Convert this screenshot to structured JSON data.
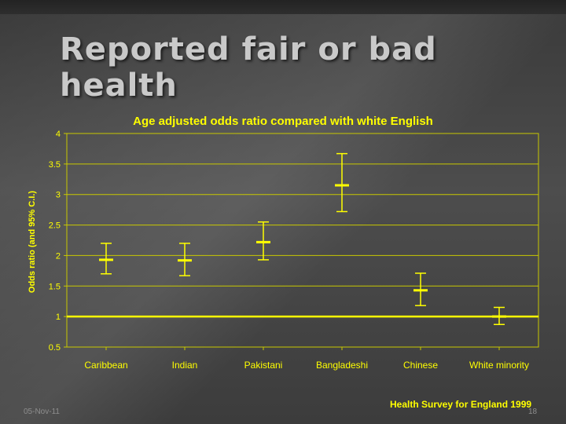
{
  "slide": {
    "title": "Reported fair or bad health",
    "source": "Health Survey for England 1999",
    "date": "05-Nov-11",
    "page": "18"
  },
  "colors": {
    "accent": "#ffff00",
    "grid": "#c8c800",
    "background": "#454545"
  },
  "chart_data": {
    "type": "errorbar",
    "title": "Age adjusted odds ratio compared with white English",
    "xlabel": "",
    "ylabel": "Odds ratio (and 95% C.I.)",
    "ylim": [
      0.5,
      4
    ],
    "yticks": [
      "0.5",
      "1",
      "1.5",
      "2",
      "2.5",
      "3",
      "3.5",
      "4"
    ],
    "reference_line": 1,
    "grid": true,
    "categories": [
      "Caribbean",
      "Indian",
      "Pakistani",
      "Bangladeshi",
      "Chinese",
      "White minority"
    ],
    "values": [
      1.93,
      1.92,
      2.22,
      3.15,
      1.43,
      1.0
    ],
    "lower": [
      1.7,
      1.67,
      1.93,
      2.72,
      1.18,
      0.87
    ],
    "upper": [
      2.2,
      2.2,
      2.55,
      3.67,
      1.71,
      1.15
    ]
  }
}
